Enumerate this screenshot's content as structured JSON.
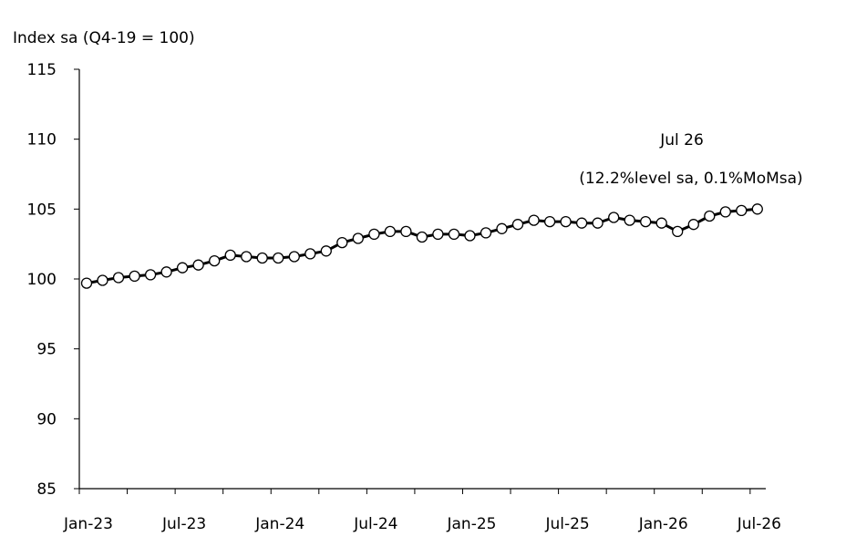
{
  "chart_data": {
    "type": "line",
    "ylabel": "Index sa (Q4-19 = 100)",
    "ylim": [
      85,
      115
    ],
    "yticks": [
      85,
      90,
      95,
      100,
      105,
      110,
      115
    ],
    "xtick_labels": [
      "Jan-23",
      "Jul-23",
      "Jan-24",
      "Jul-24",
      "Jan-25",
      "Jul-25",
      "Jan-26",
      "Jul-26"
    ],
    "grid": false,
    "marker": "open-circle",
    "series": [
      {
        "x": [
          "2023-01",
          "2023-02",
          "2023-03",
          "2023-04",
          "2023-05",
          "2023-06",
          "2023-07",
          "2023-08",
          "2023-09",
          "2023-10",
          "2023-11",
          "2023-12",
          "2024-01",
          "2024-02",
          "2024-03",
          "2024-04",
          "2024-05",
          "2024-06",
          "2024-07",
          "2024-08",
          "2024-09",
          "2024-10",
          "2024-11",
          "2024-12",
          "2025-01",
          "2025-02",
          "2025-03",
          "2025-04",
          "2025-05",
          "2025-06",
          "2025-07",
          "2025-08",
          "2025-09",
          "2025-10",
          "2025-11",
          "2025-12",
          "2026-01",
          "2026-02",
          "2026-03",
          "2026-04",
          "2026-05",
          "2026-06",
          "2026-07"
        ],
        "values": [
          99.7,
          99.9,
          100.1,
          100.2,
          100.3,
          100.5,
          100.8,
          101.0,
          101.3,
          101.7,
          101.6,
          101.5,
          101.5,
          101.6,
          101.8,
          102.0,
          102.6,
          102.9,
          103.2,
          103.4,
          103.4,
          103.0,
          103.2,
          103.2,
          103.1,
          103.3,
          103.6,
          103.9,
          104.2,
          104.1,
          104.1,
          104.0,
          104.0,
          104.4,
          104.2,
          104.1,
          104.0,
          103.4,
          103.9,
          104.5,
          104.8,
          104.9,
          105.0
        ]
      }
    ],
    "annotations": [
      "Jul 26",
      "(12.2%level sa, 0.1%MoMsa)"
    ]
  }
}
